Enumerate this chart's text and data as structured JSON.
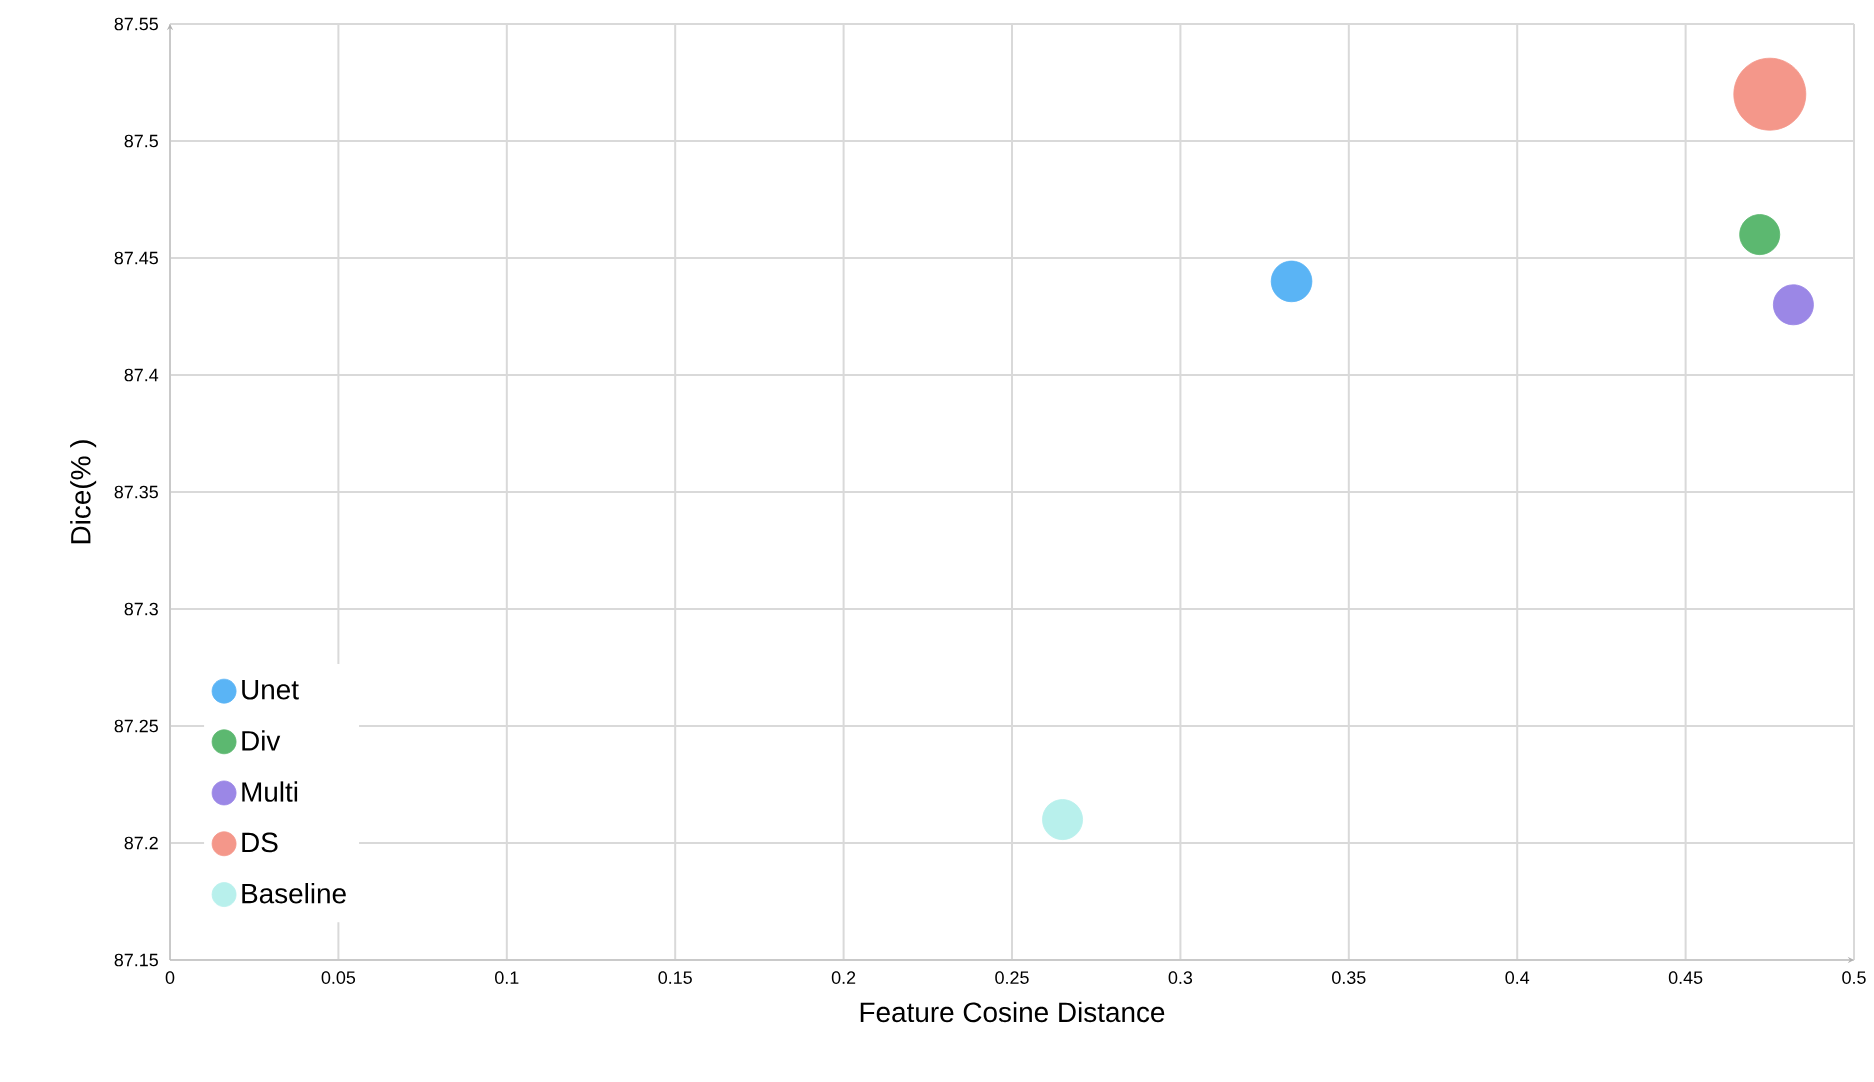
{
  "chart_data": {
    "type": "bubble",
    "xlabel": "Feature Cosine Distance",
    "ylabel": "Dice(% )",
    "xlim": [
      0,
      0.5
    ],
    "xticks": [
      0,
      0.05,
      0.1,
      0.15,
      0.2,
      0.25,
      0.3,
      0.35,
      0.4,
      0.45,
      0.5
    ],
    "ylim": [
      87.15,
      87.55
    ],
    "yticks": [
      87.15,
      87.2,
      87.25,
      87.3,
      87.35,
      87.4,
      87.45,
      87.5,
      87.55
    ],
    "grid": true,
    "legend": "bottom left",
    "marker": "circle",
    "series": [
      {
        "name": "Unet",
        "color": "#5ab4f5",
        "x": [
          0.333
        ],
        "values": [
          87.44
        ],
        "sizes": [
          0.32
        ]
      },
      {
        "name": "Div",
        "color": "#5cb870",
        "x": [
          0.472
        ],
        "values": [
          87.46
        ],
        "sizes": [
          0.31
        ]
      },
      {
        "name": "Multi",
        "color": "#9b87e6",
        "x": [
          0.482
        ],
        "values": [
          87.43
        ],
        "sizes": [
          0.31
        ]
      },
      {
        "name": "DS",
        "color": "#f4978a",
        "x": [
          0.475
        ],
        "values": [
          87.52
        ],
        "sizes": [
          1
        ]
      },
      {
        "name": "Baseline",
        "color": "#b8f0ec",
        "x": [
          0.265
        ],
        "values": [
          87.21
        ],
        "sizes": [
          0.31
        ]
      }
    ]
  }
}
